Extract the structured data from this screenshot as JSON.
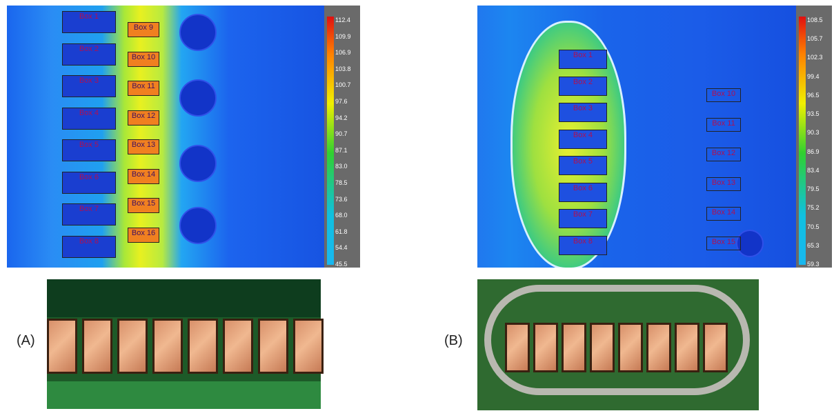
{
  "panels": [
    {
      "label": "(A)",
      "boxes": [
        "Box 1",
        "Box 2",
        "Box 3",
        "Box 4",
        "Box 5",
        "Box 6",
        "Box 7",
        "Box 8",
        "Box 9",
        "Box 10",
        "Box 11",
        "Box 12",
        "Box 13",
        "Box 14",
        "Box 15",
        "Box 16"
      ],
      "scale": [
        "112.4",
        "109.9",
        "106.9",
        "103.8",
        "100.7",
        "97.6",
        "94.2",
        "90.7",
        "87.1",
        "83.0",
        "78.5",
        "73.6",
        "68.0",
        "61.8",
        "54.4",
        "45.5"
      ]
    },
    {
      "label": "(B)",
      "boxes": [
        "Box 1",
        "Box 2",
        "Box 3",
        "Box 4",
        "Box 5",
        "Box 6",
        "Box 7",
        "Box 8",
        "Box 10",
        "Box 11",
        "Box 12",
        "Box 13",
        "Box 14",
        "Box 15"
      ],
      "scale": [
        "108.5",
        "105.7",
        "102.3",
        "99.4",
        "96.5",
        "93.5",
        "90.3",
        "86.9",
        "83.4",
        "79.5",
        "75.2",
        "70.5",
        "65.3",
        "59.3"
      ]
    }
  ]
}
